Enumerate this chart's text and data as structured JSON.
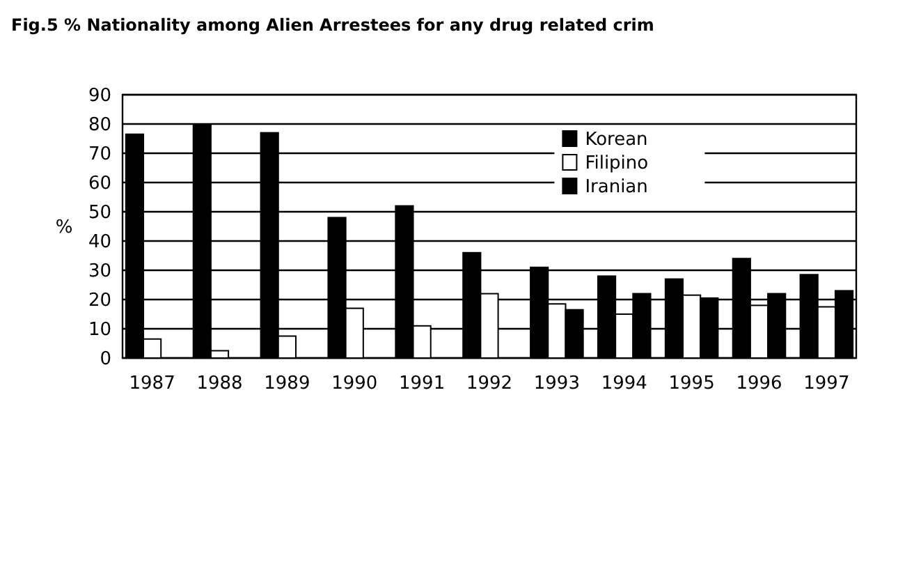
{
  "chart_data": {
    "type": "bar",
    "title": "Fig.5  % Nationality among Alien Arrestees for any drug related crim",
    "ylabel": "%",
    "categories": [
      "1987",
      "1988",
      "1989",
      "1990",
      "1991",
      "1992",
      "1993",
      "1994",
      "1995",
      "1996",
      "1997"
    ],
    "series": [
      {
        "name": "Korean",
        "color": "#000000",
        "values": [
          76.5,
          80,
          77,
          48,
          52,
          36,
          31,
          28,
          27,
          34,
          28.5
        ]
      },
      {
        "name": "Filipino",
        "color": "#ffffff",
        "values": [
          6.5,
          2.5,
          7.5,
          17,
          11,
          22,
          18.5,
          15,
          21.5,
          18,
          17.5
        ]
      },
      {
        "name": "Iranian",
        "color": "#000000",
        "values": [
          null,
          null,
          null,
          null,
          null,
          null,
          16.5,
          22,
          20.5,
          22,
          23
        ]
      }
    ],
    "ylim": [
      0,
      90
    ],
    "yticks": [
      0,
      10,
      20,
      30,
      40,
      50,
      60,
      70,
      80,
      90
    ],
    "grid": "y",
    "legend": "top right"
  }
}
